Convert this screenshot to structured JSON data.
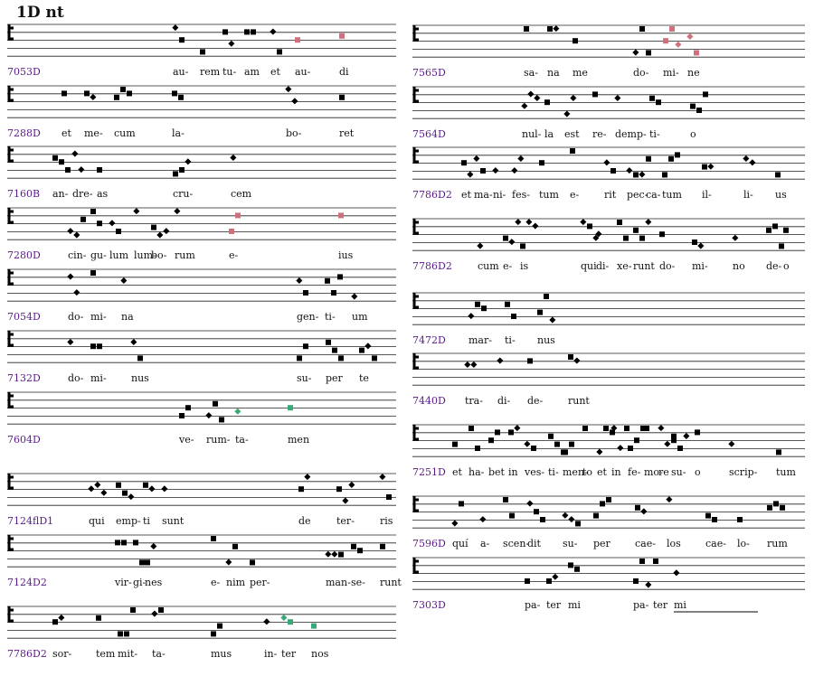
{
  "title": "1D nt",
  "left": [
    {
      "id": "7053D",
      "syllables": [
        "au-",
        "rem",
        "tu-",
        "am",
        "et",
        "au-",
        "di"
      ]
    },
    {
      "id": "7288D",
      "syllables": [
        "et",
        "me-",
        "cum",
        "la-",
        "bo-",
        "ret"
      ]
    },
    {
      "id": "7160B",
      "syllables": [
        "an-",
        "dre-",
        "as",
        "cru-",
        "cem"
      ]
    },
    {
      "id": "7280D",
      "syllables": [
        "cin-",
        "gu-",
        "lum",
        "lum-",
        "bo-",
        "rum",
        "e-",
        "ius"
      ]
    },
    {
      "id": "7054D",
      "syllables": [
        "do-",
        "mi-",
        "na",
        "gen-",
        "ti-",
        "um"
      ]
    },
    {
      "id": "7132D",
      "syllables": [
        "do-",
        "mi-",
        "nus",
        "su-",
        "per",
        "te"
      ]
    },
    {
      "id": "7604D",
      "syllables": [
        "ve-",
        "rum-",
        "ta-",
        "men"
      ]
    },
    {
      "id": "7124flD1",
      "syllables": [
        "qui",
        "emp-",
        "ti",
        "sunt",
        "de",
        "ter-",
        "ris"
      ]
    },
    {
      "id": "7124D2",
      "syllables": [
        "vir-",
        "gi-",
        "nes",
        "e-",
        "nim",
        "per-",
        "man-",
        "se-",
        "runt"
      ]
    },
    {
      "id": "7786D2",
      "syllables": [
        "sor-",
        "tem",
        "mit-",
        "ta-",
        "mus",
        "in-",
        "ter",
        "nos"
      ]
    }
  ],
  "right": [
    {
      "id": "7565D",
      "syllables": [
        "sa-",
        "na",
        "me",
        "do-",
        "mi-",
        "ne"
      ]
    },
    {
      "id": "7564D",
      "syllables": [
        "nul-",
        "la",
        "est",
        "re-",
        "demp-",
        "ti-",
        "o"
      ]
    },
    {
      "id": "7786D2",
      "syllables": [
        "et",
        "ma-",
        "ni-",
        "fes-",
        "tum",
        "e-",
        "rit",
        "pec-",
        "ca-",
        "tum",
        "il-",
        "li-",
        "us"
      ]
    },
    {
      "id": "7786D2",
      "syllables": [
        "cum",
        "e-",
        "is",
        "qui",
        "di-",
        "xe-",
        "runt",
        "do-",
        "mi-",
        "no",
        "de-",
        "o"
      ]
    },
    {
      "id": "7472D",
      "syllables": [
        "mar-",
        "ti-",
        "nus"
      ]
    },
    {
      "id": "7440D",
      "syllables": [
        "tra-",
        "di-",
        "de-",
        "runt"
      ]
    },
    {
      "id": "7251D",
      "syllables": [
        "et",
        "ha-",
        "bet",
        "in",
        "ves-",
        "ti-",
        "men-",
        "to",
        "et",
        "in",
        "fe-",
        "mo-",
        "re",
        "su-",
        "o",
        "scrip-",
        "tum"
      ]
    },
    {
      "id": "7596D",
      "syllables": [
        "quí",
        "a-",
        "scen-",
        "dit",
        "su-",
        "per",
        "cae-",
        "los",
        "cae-",
        "lo-",
        "rum"
      ]
    },
    {
      "id": "7303D",
      "syllables": [
        "pa-",
        "ter",
        "mi",
        "pa-",
        "ter",
        "mi"
      ]
    }
  ]
}
